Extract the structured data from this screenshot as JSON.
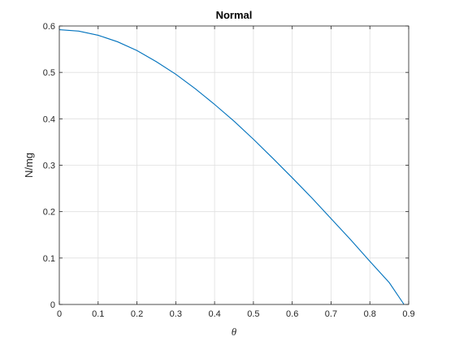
{
  "chart_data": {
    "type": "line",
    "title": "Normal",
    "xlabel": "θ",
    "ylabel": "N/mg",
    "xlim": [
      0,
      0.9
    ],
    "ylim": [
      0,
      0.6
    ],
    "xticks": [
      "0",
      "0.1",
      "0.2",
      "0.3",
      "0.4",
      "0.5",
      "0.6",
      "0.7",
      "0.8",
      "0.9"
    ],
    "yticks": [
      "0",
      "0.1",
      "0.2",
      "0.3",
      "0.4",
      "0.5",
      "0.6"
    ],
    "grid": true,
    "series": [
      {
        "color": "#0072BD",
        "x": [
          0,
          0.05,
          0.1,
          0.15,
          0.2,
          0.25,
          0.3,
          0.35,
          0.4,
          0.45,
          0.5,
          0.55,
          0.6,
          0.65,
          0.7,
          0.75,
          0.8,
          0.85,
          0.888
        ],
        "y": [
          0.592,
          0.589,
          0.58,
          0.566,
          0.547,
          0.523,
          0.496,
          0.465,
          0.431,
          0.395,
          0.356,
          0.315,
          0.273,
          0.23,
          0.185,
          0.14,
          0.093,
          0.047,
          0.0
        ]
      }
    ]
  }
}
